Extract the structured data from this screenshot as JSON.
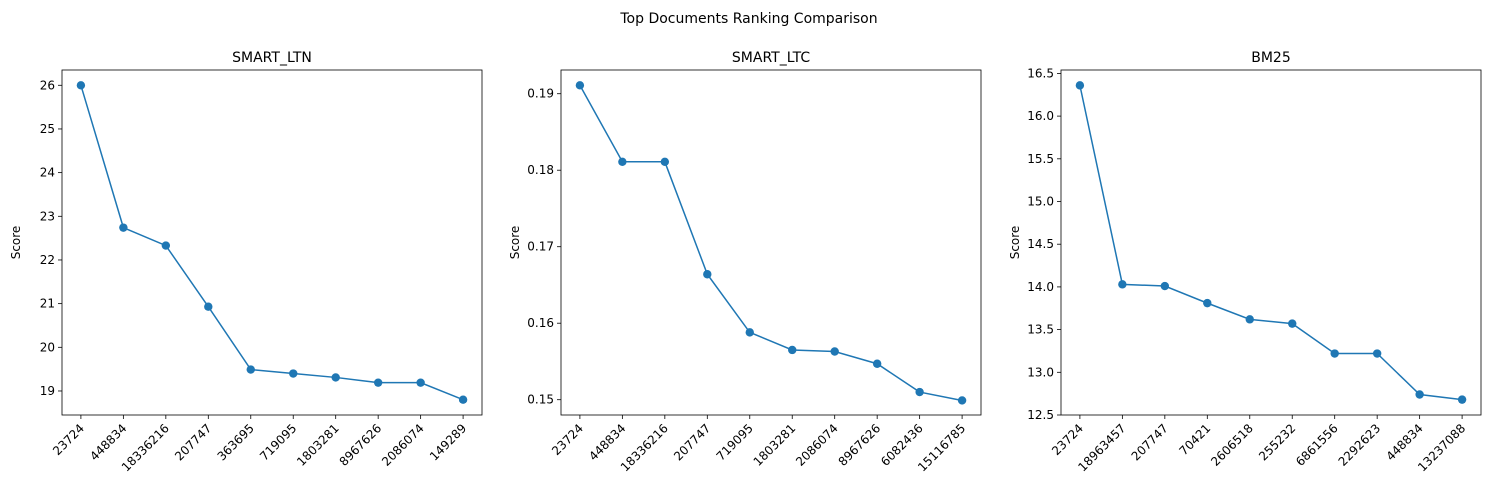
{
  "figure": {
    "title": "Top Documents Ranking Comparison",
    "line_color": "#1f77b4"
  },
  "chart_data": [
    {
      "type": "line",
      "title": "SMART_LTN",
      "xlabel": "",
      "ylabel": "Score",
      "categories": [
        "23724",
        "448834",
        "18336216",
        "207747",
        "363695",
        "719095",
        "1803281",
        "8967626",
        "2086074",
        "149289"
      ],
      "values": [
        26.0,
        22.74,
        22.33,
        20.93,
        19.49,
        19.4,
        19.31,
        19.19,
        19.19,
        18.8
      ],
      "ylim": [
        18.45,
        26.35
      ],
      "yticks": [
        "19",
        "20",
        "21",
        "22",
        "23",
        "24",
        "25",
        "26"
      ],
      "ytick_values": [
        19,
        20,
        21,
        22,
        23,
        24,
        25,
        26
      ],
      "grid": false,
      "marker": "circle"
    },
    {
      "type": "line",
      "title": "SMART_LTC",
      "xlabel": "",
      "ylabel": "Score",
      "categories": [
        "23724",
        "448834",
        "18336216",
        "207747",
        "719095",
        "1803281",
        "2086074",
        "8967626",
        "6082436",
        "15116785"
      ],
      "values": [
        0.1911,
        0.1811,
        0.1811,
        0.1664,
        0.1588,
        0.1565,
        0.1563,
        0.1547,
        0.151,
        0.1499
      ],
      "ylim": [
        0.148,
        0.1931
      ],
      "yticks": [
        "0.15",
        "0.16",
        "0.17",
        "0.18",
        "0.19"
      ],
      "ytick_values": [
        0.15,
        0.16,
        0.17,
        0.18,
        0.19
      ],
      "grid": false,
      "marker": "circle"
    },
    {
      "type": "line",
      "title": "BM25",
      "xlabel": "",
      "ylabel": "Score",
      "categories": [
        "23724",
        "18963457",
        "207747",
        "70421",
        "2606518",
        "255232",
        "6861556",
        "2292623",
        "448834",
        "13237088"
      ],
      "values": [
        16.36,
        14.03,
        14.01,
        13.81,
        13.62,
        13.57,
        13.22,
        13.22,
        12.74,
        12.68
      ],
      "ylim": [
        12.5,
        16.54
      ],
      "yticks": [
        "12.5",
        "13.0",
        "13.5",
        "14.0",
        "14.5",
        "15.0",
        "15.5",
        "16.0",
        "16.5"
      ],
      "ytick_values": [
        12.5,
        13.0,
        13.5,
        14.0,
        14.5,
        15.0,
        15.5,
        16.0,
        16.5
      ],
      "grid": false,
      "marker": "circle"
    }
  ]
}
